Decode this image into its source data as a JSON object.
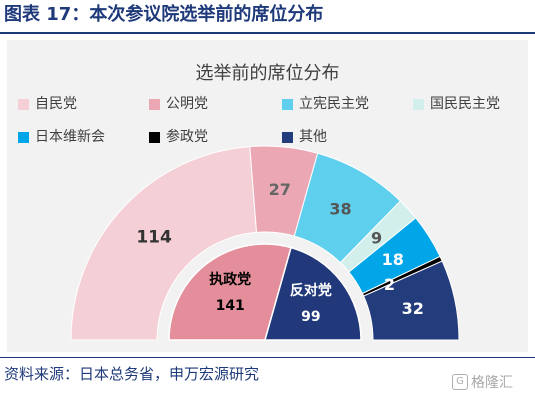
{
  "figure": {
    "title": "图表 17：本次参议院选举前的席位分布",
    "source": "资料来源：日本总务省，申万宏源研究",
    "watermark": "格隆汇"
  },
  "colors": {
    "title_blue": "#1f3a7a",
    "inner_ruling": "#e38e9a",
    "inner_opposition": "#21397a"
  },
  "chart_data": {
    "type": "pie",
    "subtype": "semicircle-donut",
    "title": "选举前的席位分布",
    "legend_position": "top",
    "series": [
      {
        "name": "自民党",
        "value": 114,
        "color": "#f4cfd5",
        "label_color": "#333333"
      },
      {
        "name": "公明党",
        "value": 27,
        "color": "#eba8b4",
        "label_color": "#666666"
      },
      {
        "name": "立宪民主党",
        "value": 38,
        "color": "#5fcfee",
        "label_color": "#555555"
      },
      {
        "name": "国民民主党",
        "value": 9,
        "color": "#d2efeb",
        "label_color": "#555555"
      },
      {
        "name": "日本维新会",
        "value": 18,
        "color": "#00a6e8",
        "label_color": "#ffffff"
      },
      {
        "name": "参政党",
        "value": 2,
        "color": "#000000",
        "label_color": "#ffffff"
      },
      {
        "name": "其他",
        "value": 32,
        "color": "#233c7c",
        "label_color": "#ffffff"
      }
    ],
    "inner_groups": [
      {
        "name": "执政党",
        "value": 141,
        "color": "#e38e9a",
        "label_color": "#000000"
      },
      {
        "name": "反对党",
        "value": 99,
        "color": "#21397a",
        "label_color": "#ffffff"
      }
    ]
  }
}
